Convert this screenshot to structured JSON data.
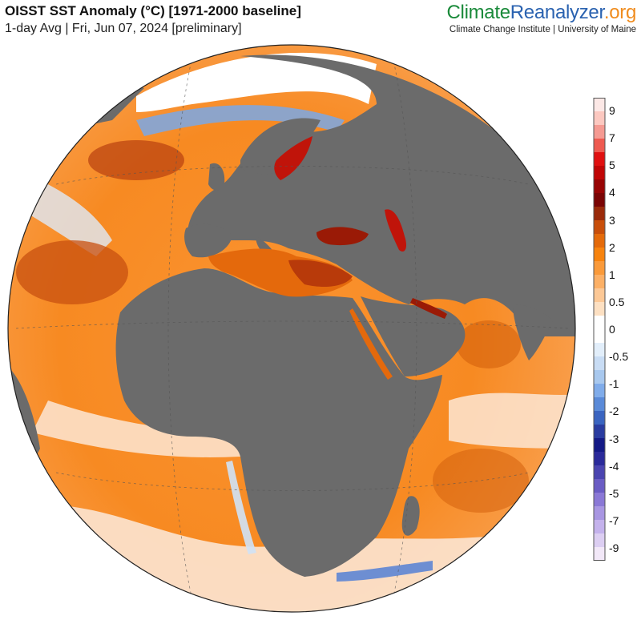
{
  "header": {
    "title": "OISST SST Anomaly (°C) [1971-2000 baseline]",
    "subtitle": "1-day Avg | Fri, Jun 07, 2024 [preliminary]"
  },
  "brand": {
    "logo_part1": "Climate",
    "logo_part2": "Reanalyzer",
    "logo_part3": ".org",
    "tagline": "Climate Change Institute | University of Maine",
    "colors": {
      "part1": "#1a8a3a",
      "part2": "#2a62b0",
      "part3": "#f08c1e"
    }
  },
  "map": {
    "projection": "orthographic",
    "center": "Africa / Europe",
    "land_color": "#6b6b6b",
    "ice_color": "#ffffff"
  },
  "legend": {
    "labels": [
      "9",
      "7",
      "5",
      "4",
      "3",
      "2",
      "1",
      "0.5",
      "0",
      "-0.5",
      "-1",
      "-2",
      "-3",
      "-4",
      "-5",
      "-7",
      "-9"
    ],
    "colors": [
      "#fce8e6",
      "#fcc8c0",
      "#f59a92",
      "#ee5a50",
      "#e01010",
      "#c00606",
      "#980404",
      "#7a0404",
      "#9a2a0a",
      "#c84e0a",
      "#e46a0a",
      "#f7830e",
      "#fa9a3a",
      "#fcb066",
      "#fcc896",
      "#fde0c2",
      "#ffffff",
      "#ffffff",
      "#e2eefa",
      "#c8dcf4",
      "#a8c8ee",
      "#80acea",
      "#5a8ad8",
      "#3a64c0",
      "#2a3ca0",
      "#141a86",
      "#2a2a9a",
      "#4a44b0",
      "#6a5cc4",
      "#8a78d6",
      "#a896e2",
      "#c4b2ec",
      "#dccef2",
      "#f2e8f8"
    ]
  }
}
